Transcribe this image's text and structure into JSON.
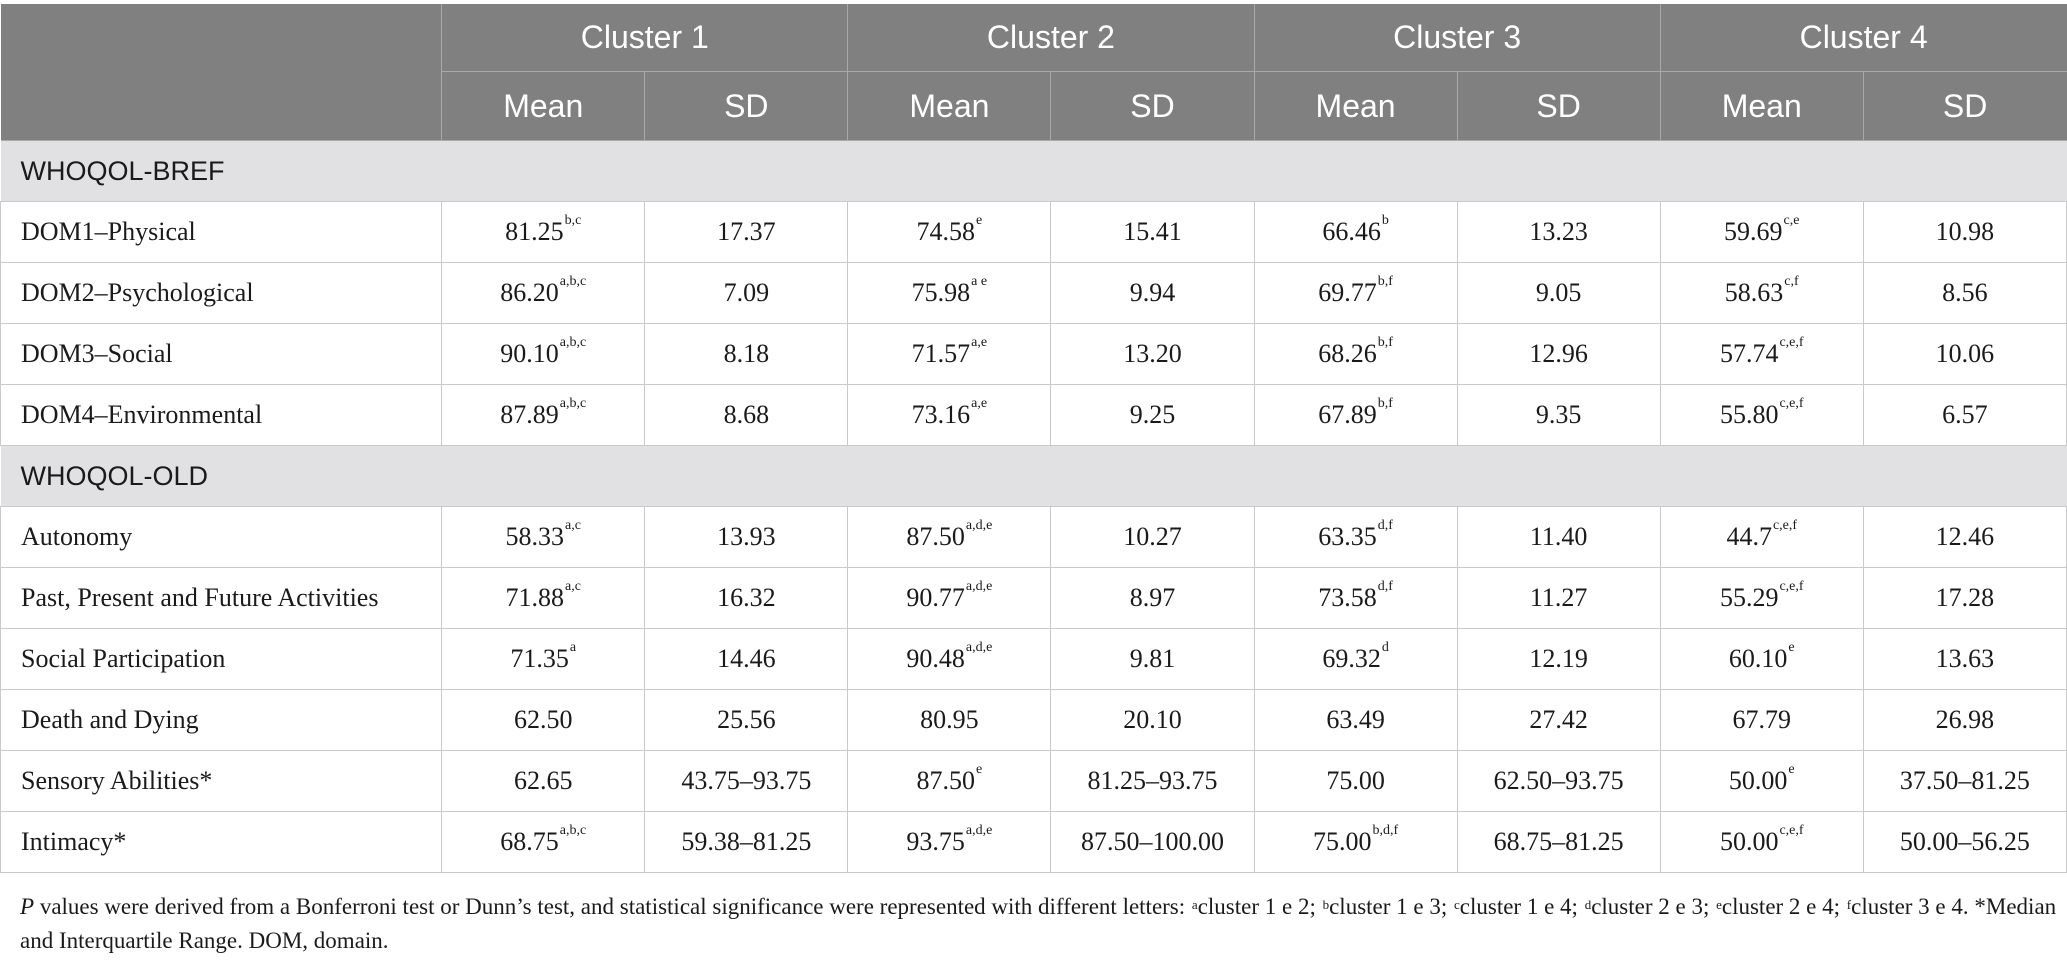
{
  "header": {
    "clusters": [
      "Cluster 1",
      "Cluster 2",
      "Cluster 3",
      "Cluster 4"
    ],
    "mean_label": "Mean",
    "sd_label": "SD"
  },
  "sections": [
    {
      "title": "WHOQOL-BREF",
      "rows": [
        {
          "label": "DOM1–Physical",
          "cells": [
            {
              "v": "81.25",
              "s": "b,c"
            },
            {
              "v": "17.37",
              "s": ""
            },
            {
              "v": "74.58",
              "s": "e"
            },
            {
              "v": "15.41",
              "s": ""
            },
            {
              "v": "66.46",
              "s": "b"
            },
            {
              "v": "13.23",
              "s": ""
            },
            {
              "v": "59.69",
              "s": "c,e"
            },
            {
              "v": "10.98",
              "s": ""
            }
          ]
        },
        {
          "label": "DOM2–Psychological",
          "cells": [
            {
              "v": "86.20",
              "s": "a,b,c"
            },
            {
              "v": "7.09",
              "s": ""
            },
            {
              "v": "75.98",
              "s": "a e"
            },
            {
              "v": "9.94",
              "s": ""
            },
            {
              "v": "69.77",
              "s": "b,f"
            },
            {
              "v": "9.05",
              "s": ""
            },
            {
              "v": "58.63",
              "s": "c,f"
            },
            {
              "v": "8.56",
              "s": ""
            }
          ]
        },
        {
          "label": "DOM3–Social",
          "cells": [
            {
              "v": "90.10",
              "s": "a,b,c"
            },
            {
              "v": "8.18",
              "s": ""
            },
            {
              "v": "71.57",
              "s": "a,e"
            },
            {
              "v": "13.20",
              "s": ""
            },
            {
              "v": "68.26",
              "s": "b,f"
            },
            {
              "v": "12.96",
              "s": ""
            },
            {
              "v": "57.74",
              "s": "c,e,f"
            },
            {
              "v": "10.06",
              "s": ""
            }
          ]
        },
        {
          "label": "DOM4–Environmental",
          "cells": [
            {
              "v": "87.89",
              "s": "a,b,c"
            },
            {
              "v": "8.68",
              "s": ""
            },
            {
              "v": "73.16",
              "s": "a,e"
            },
            {
              "v": "9.25",
              "s": ""
            },
            {
              "v": "67.89",
              "s": "b,f"
            },
            {
              "v": "9.35",
              "s": ""
            },
            {
              "v": "55.80",
              "s": "c,e,f"
            },
            {
              "v": "6.57",
              "s": ""
            }
          ]
        }
      ]
    },
    {
      "title": "WHOQOL-OLD",
      "rows": [
        {
          "label": "Autonomy",
          "cells": [
            {
              "v": "58.33",
              "s": "a,c"
            },
            {
              "v": "13.93",
              "s": ""
            },
            {
              "v": "87.50",
              "s": "a,d,e"
            },
            {
              "v": "10.27",
              "s": ""
            },
            {
              "v": "63.35",
              "s": "d,f"
            },
            {
              "v": "11.40",
              "s": ""
            },
            {
              "v": "44.7",
              "s": "c,e,f"
            },
            {
              "v": "12.46",
              "s": ""
            }
          ]
        },
        {
          "label": "Past, Present and Future Activities",
          "cells": [
            {
              "v": "71.88",
              "s": "a,c"
            },
            {
              "v": "16.32",
              "s": ""
            },
            {
              "v": "90.77",
              "s": "a,d,e"
            },
            {
              "v": "8.97",
              "s": ""
            },
            {
              "v": "73.58",
              "s": "d,f"
            },
            {
              "v": "11.27",
              "s": ""
            },
            {
              "v": "55.29",
              "s": "c,e,f"
            },
            {
              "v": "17.28",
              "s": ""
            }
          ]
        },
        {
          "label": "Social Participation",
          "cells": [
            {
              "v": "71.35",
              "s": "a"
            },
            {
              "v": "14.46",
              "s": ""
            },
            {
              "v": "90.48",
              "s": "a,d,e"
            },
            {
              "v": "9.81",
              "s": ""
            },
            {
              "v": "69.32",
              "s": "d"
            },
            {
              "v": "12.19",
              "s": ""
            },
            {
              "v": "60.10",
              "s": "e"
            },
            {
              "v": "13.63",
              "s": ""
            }
          ]
        },
        {
          "label": "Death and Dying",
          "cells": [
            {
              "v": "62.50",
              "s": ""
            },
            {
              "v": "25.56",
              "s": ""
            },
            {
              "v": "80.95",
              "s": ""
            },
            {
              "v": "20.10",
              "s": ""
            },
            {
              "v": "63.49",
              "s": ""
            },
            {
              "v": "27.42",
              "s": ""
            },
            {
              "v": "67.79",
              "s": ""
            },
            {
              "v": "26.98",
              "s": ""
            }
          ]
        },
        {
          "label": "Sensory Abilities*",
          "cells": [
            {
              "v": "62.65",
              "s": ""
            },
            {
              "v": "43.75–93.75",
              "s": ""
            },
            {
              "v": "87.50",
              "s": "e"
            },
            {
              "v": "81.25–93.75",
              "s": ""
            },
            {
              "v": "75.00",
              "s": ""
            },
            {
              "v": "62.50–93.75",
              "s": ""
            },
            {
              "v": "50.00",
              "s": "e"
            },
            {
              "v": "37.50–81.25",
              "s": ""
            }
          ]
        },
        {
          "label": "Intimacy*",
          "cells": [
            {
              "v": "68.75",
              "s": "a,b,c"
            },
            {
              "v": "59.38–81.25",
              "s": ""
            },
            {
              "v": "93.75",
              "s": "a,d,e"
            },
            {
              "v": "87.50–100.00",
              "s": ""
            },
            {
              "v": "75.00",
              "s": "b,d,f"
            },
            {
              "v": "68.75–81.25",
              "s": ""
            },
            {
              "v": "50.00",
              "s": "c,e,f"
            },
            {
              "v": "50.00–56.25",
              "s": ""
            }
          ]
        }
      ]
    }
  ],
  "footnote": {
    "p_italic": "P",
    "intro": " values were derived from a Bonferroni test or Dunn’s test, and statistical significance were represented with different letters: ",
    "items": [
      {
        "sup": "a",
        "text": "cluster 1 e 2; "
      },
      {
        "sup": "b",
        "text": "cluster 1 e 3; "
      },
      {
        "sup": "c",
        "text": "cluster 1 e 4; "
      },
      {
        "sup": "d",
        "text": "cluster 2 e 3; "
      },
      {
        "sup": "e",
        "text": "cluster 2 e 4; "
      },
      {
        "sup": "f",
        "text": "cluster 3 e 4. "
      }
    ],
    "tail": "*Median and Interquartile Range. DOM, domain."
  }
}
